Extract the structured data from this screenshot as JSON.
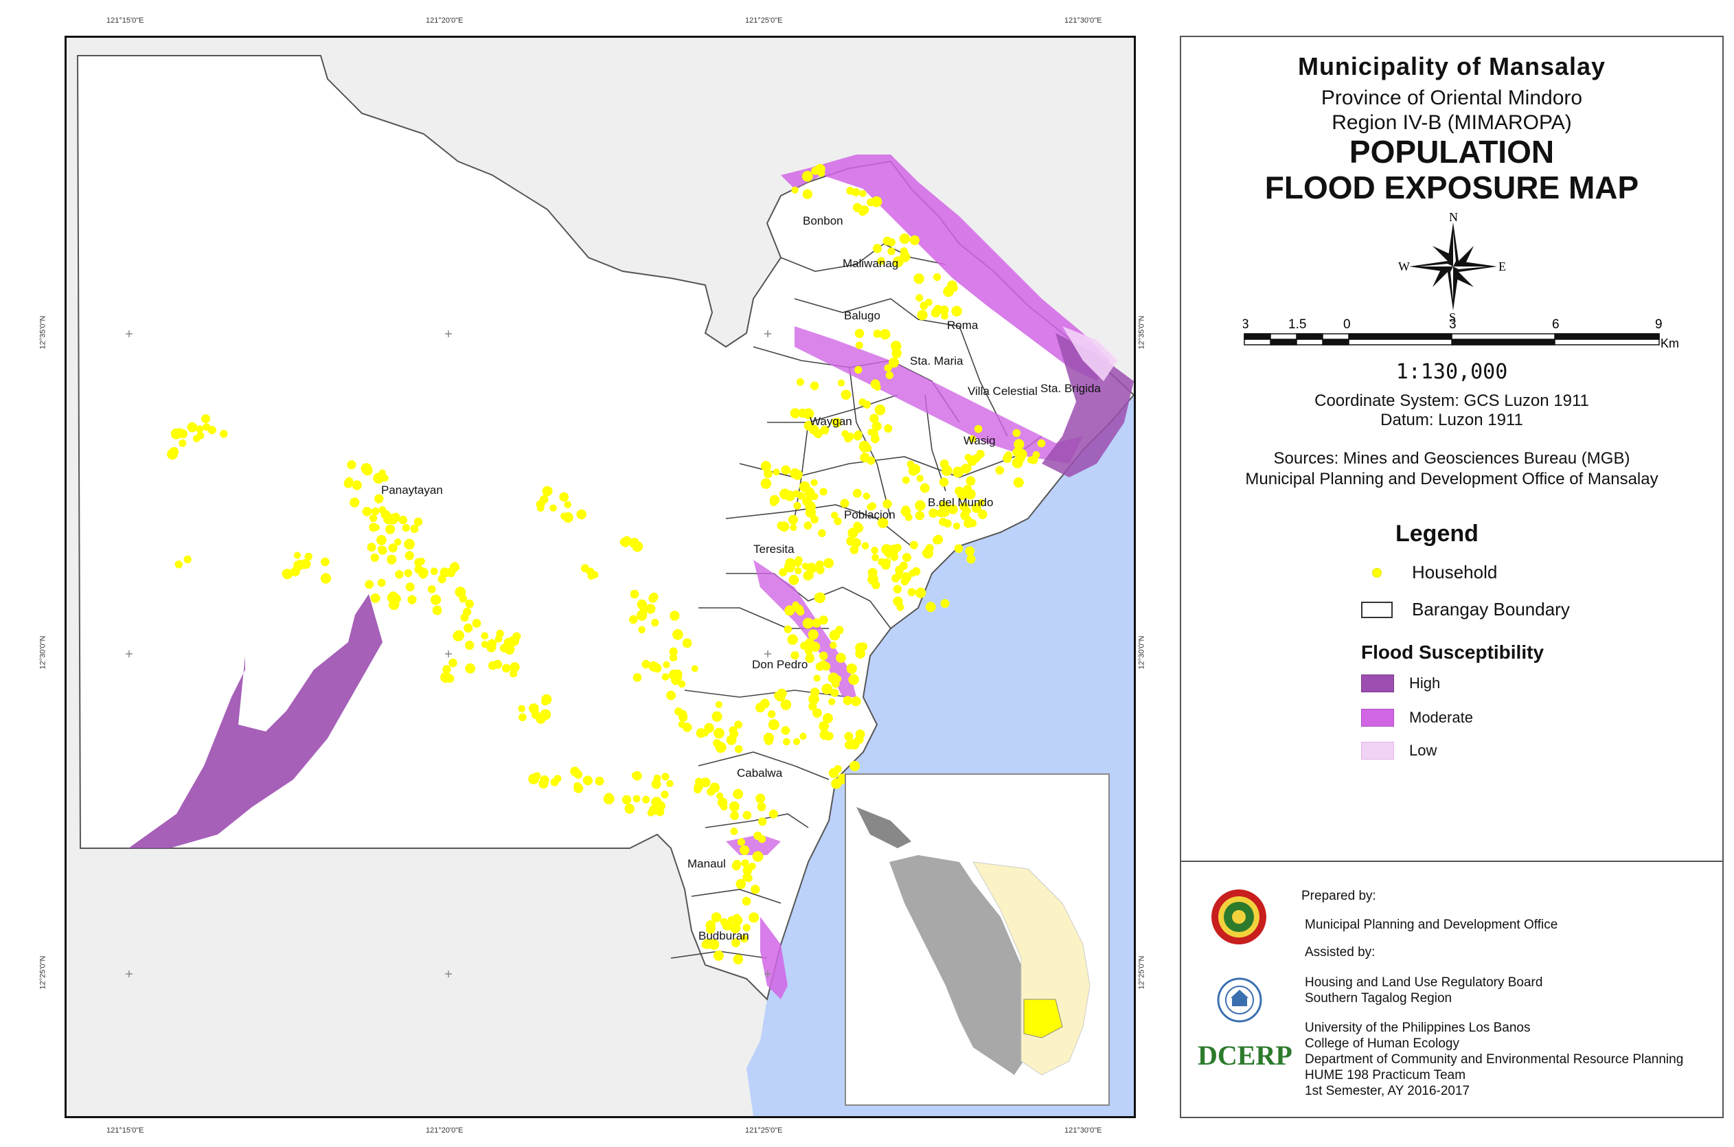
{
  "map": {
    "top_coords": [
      "121°15'0\"E",
      "121°20'0\"E",
      "121°25'0\"E",
      "121°30'0\"E"
    ],
    "bottom_coords": [
      "121°15'0\"E",
      "121°20'0\"E",
      "121°25'0\"E",
      "121°30'0\"E"
    ],
    "left_coords": [
      "12°35'0\"N",
      "12°30'0\"N",
      "12°25'0\"N"
    ],
    "right_coords": [
      "12°35'0\"N",
      "12°30'0\"N",
      "12°25'0\"N"
    ],
    "barangays": [
      "Bonbon",
      "Maliwanag",
      "Balugo",
      "Roma",
      "Sta. Maria",
      "Villa Celestial",
      "Sta. Brigida",
      "Waygan",
      "Wasig",
      "Panaytayan",
      "B.del Mundo",
      "Poblacion",
      "Teresita",
      "Don Pedro",
      "Cabalwa",
      "Manaul",
      "Budburan"
    ],
    "colors": {
      "land": "#ffffff",
      "outside": "#efefef",
      "sea": "#bcd2fb",
      "household": "#ffff00",
      "high": "#9c4fb0",
      "moderate": "#d166e5",
      "low": "#f3d2f7"
    }
  },
  "title": {
    "municipality": "Municipality of Mansalay",
    "province": "Province of Oriental Mindoro",
    "region": "Region IV-B (MIMAROPA)",
    "line1": "POPULATION",
    "line2": "FLOOD EXPOSURE MAP"
  },
  "north_arrow": {
    "n": "N",
    "s": "S",
    "e": "E",
    "w": "W"
  },
  "scale": {
    "labels": [
      "3",
      "1.5",
      "0",
      "3",
      "6",
      "9"
    ],
    "unit": "Km",
    "ratio": "1:130,000"
  },
  "info": {
    "coordinate_system": "Coordinate System: GCS Luzon 1911",
    "datum": "Datum: Luzon 1911",
    "source1": "Sources: Mines and Geosciences Bureau (MGB)",
    "source2": "Municipal Planning and Development Office of Mansalay"
  },
  "legend": {
    "title": "Legend",
    "household": "Household",
    "boundary": "Barangay Boundary",
    "flood_title": "Flood Susceptibility",
    "high": "High",
    "moderate": "Moderate",
    "low": "Low"
  },
  "credits": {
    "prepared_by": "Prepared by:",
    "prepared_org": "Municipal Planning and Development Office",
    "assisted_by": "Assisted by:",
    "hlurb1": "Housing and Land Use Regulatory Board",
    "hlurb2": "Southern Tagalog Region",
    "uplb1": "University of the Philippines Los Banos",
    "uplb2": "College of Human Ecology",
    "uplb3": "Department of Community and Environmental Resource Planning",
    "uplb4": "HUME 198 Practicum Team",
    "uplb5": "1st Semester, AY 2016-2017",
    "dcerp_logo": "DCERP"
  }
}
